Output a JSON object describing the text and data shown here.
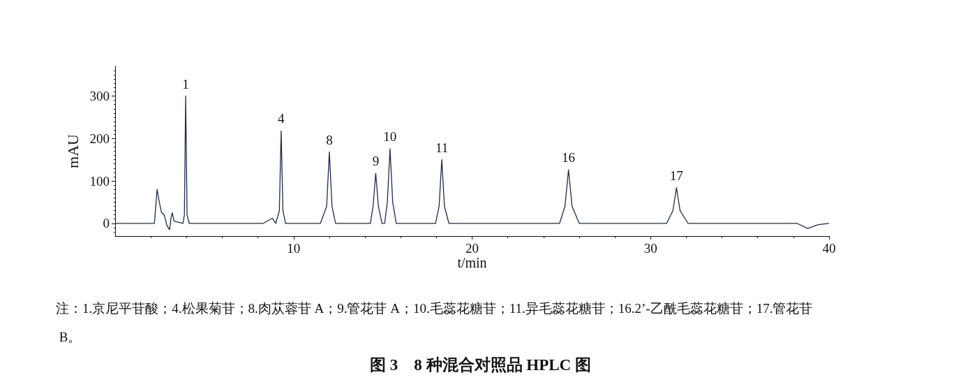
{
  "chart_data": {
    "type": "line",
    "title": "图 3　8 种混合对照品 HPLC 图",
    "xlabel": "t/min",
    "ylabel": "mAU",
    "xlim": [
      0,
      40
    ],
    "xticks": [
      10,
      20,
      30,
      40
    ],
    "ylim": [
      -30,
      370
    ],
    "yticks": [
      0,
      100,
      200,
      300
    ],
    "grid": false,
    "marker": "none",
    "line_style": "solid",
    "series": [
      {
        "color": "#1f2a4a",
        "x": [
          0,
          2.2,
          2.35,
          2.45,
          2.6,
          2.75,
          2.9,
          3.05,
          3.12,
          3.2,
          3.3,
          3.5,
          3.8,
          3.88,
          3.95,
          4.03,
          4.15,
          6,
          8.3,
          8.8,
          9.0,
          9.2,
          9.3,
          9.4,
          9.55,
          11.5,
          11.85,
          12.0,
          12.15,
          12.35,
          14.3,
          14.45,
          14.6,
          14.75,
          14.95,
          15.1,
          15.25,
          15.4,
          15.55,
          15.75,
          17.95,
          18.15,
          18.3,
          18.45,
          18.7,
          24.9,
          25.2,
          25.4,
          25.6,
          26,
          30.9,
          31.25,
          31.45,
          31.65,
          32.1,
          38.2,
          38.8,
          39.4,
          40
        ],
        "values": [
          0,
          0,
          80,
          55,
          25,
          20,
          -5,
          -15,
          10,
          25,
          5,
          3,
          0,
          20,
          300,
          20,
          0,
          0,
          0,
          12,
          0,
          30,
          218,
          30,
          0,
          0,
          40,
          168,
          40,
          0,
          0,
          40,
          118,
          40,
          0,
          0,
          50,
          176,
          50,
          0,
          0,
          40,
          150,
          40,
          0,
          0,
          40,
          126,
          40,
          0,
          0,
          30,
          84,
          30,
          0,
          0,
          -12,
          -3,
          0
        ]
      }
    ],
    "annotations": [
      {
        "text": "1",
        "x": 3.95,
        "y": 300
      },
      {
        "text": "4",
        "x": 9.3,
        "y": 218
      },
      {
        "text": "8",
        "x": 12.0,
        "y": 168
      },
      {
        "text": "9",
        "x": 14.6,
        "y": 118
      },
      {
        "text": "10",
        "x": 15.4,
        "y": 176
      },
      {
        "text": "11",
        "x": 18.3,
        "y": 150
      },
      {
        "text": "16",
        "x": 25.4,
        "y": 126
      },
      {
        "text": "17",
        "x": 31.45,
        "y": 84
      },
      "注：1.京尼平苷酸；4.松果菊苷；8.肉苁蓉苷 A；9.管花苷 A；10.毛蕊花糖苷；11.异毛蕊花糖苷；16.2’-乙酰毛蕊花糖苷；17.管花苷 B。"
    ]
  }
}
